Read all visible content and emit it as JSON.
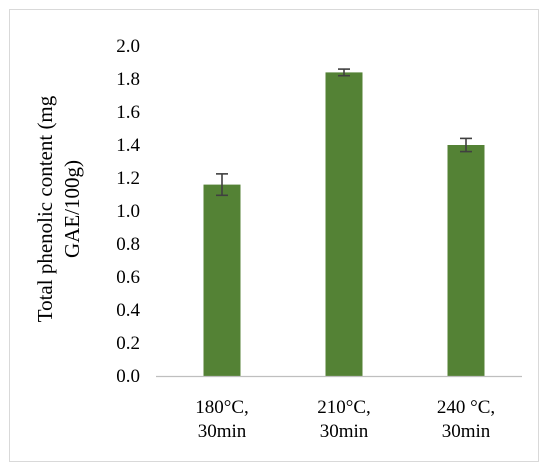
{
  "chart_data": {
    "type": "bar",
    "categories": [
      [
        "180°C,",
        "30min"
      ],
      [
        "210°C,",
        "30min"
      ],
      [
        "240 °C,",
        "30min"
      ]
    ],
    "values": [
      1.16,
      1.84,
      1.4
    ],
    "errors": [
      0.065,
      0.02,
      0.04
    ],
    "ylabel_lines": [
      "Total phenolic content (mg",
      "GAE/100g)"
    ],
    "xlabel": "",
    "ylim": [
      0,
      2.0
    ],
    "yticks": [
      "0.0",
      "0.2",
      "0.4",
      "0.6",
      "0.8",
      "1.0",
      "1.2",
      "1.4",
      "1.6",
      "1.8",
      "2.0"
    ],
    "bar_color": "#548235",
    "error_bar_color": "#404040",
    "axis_color": "#bfbfbf",
    "grid": false,
    "legend": "none"
  }
}
